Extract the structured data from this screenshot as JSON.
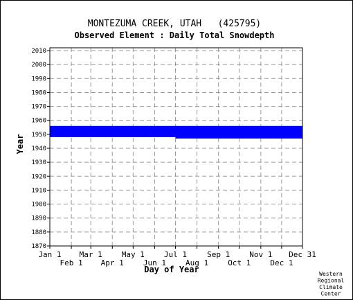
{
  "chart_data": {
    "type": "heatmap",
    "title": "MONTEZUMA CREEK, UTAH   (425795)",
    "subtitle": "Observed Element : Daily Total Snowdepth",
    "xlabel": "Day of Year",
    "ylabel": "Year",
    "ylim": [
      1870,
      2012
    ],
    "y_ticks": [
      1870,
      1880,
      1890,
      1900,
      1910,
      1920,
      1930,
      1940,
      1950,
      1960,
      1970,
      1980,
      1990,
      2000,
      2010
    ],
    "x_ticks": [
      {
        "label": "Jan 1",
        "day": 1,
        "row": 0
      },
      {
        "label": "Feb 1",
        "day": 32,
        "row": 1
      },
      {
        "label": "Mar 1",
        "day": 60,
        "row": 0
      },
      {
        "label": "Apr 1",
        "day": 91,
        "row": 1
      },
      {
        "label": "May 1",
        "day": 121,
        "row": 0
      },
      {
        "label": "Jun 1",
        "day": 152,
        "row": 1
      },
      {
        "label": "Jul 1",
        "day": 182,
        "row": 0
      },
      {
        "label": "Aug 1",
        "day": 213,
        "row": 1
      },
      {
        "label": "Sep 1",
        "day": 244,
        "row": 0
      },
      {
        "label": "Oct 1",
        "day": 274,
        "row": 1
      },
      {
        "label": "Nov 1",
        "day": 305,
        "row": 0
      },
      {
        "label": "Dec 1",
        "day": 335,
        "row": 1
      },
      {
        "label": "Dec 31",
        "day": 365,
        "row": 0
      }
    ],
    "grid": true,
    "record_color": "#0000ff",
    "records": [
      {
        "year_start": 1948,
        "year_end": 1956,
        "day_start": 1,
        "day_end": 182
      },
      {
        "year_start": 1947,
        "year_end": 1956,
        "day_start": 182,
        "day_end": 365
      }
    ],
    "credit": [
      "Western",
      "Regional",
      "Climate",
      "Center"
    ]
  }
}
